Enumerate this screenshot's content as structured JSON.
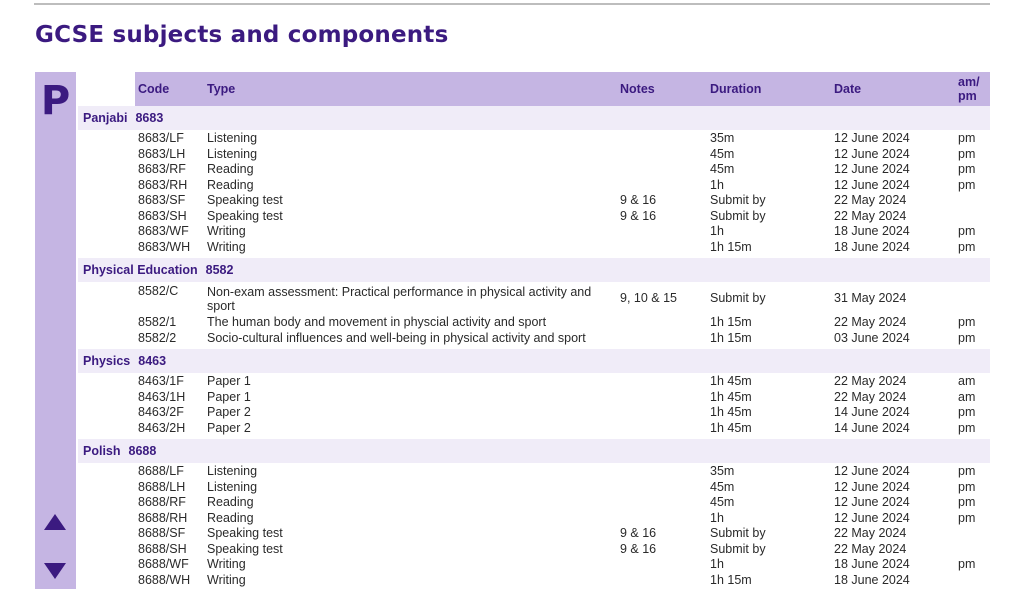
{
  "title": "GCSE subjects and components",
  "index_letter": "P",
  "headers": {
    "code": "Code",
    "type": "Type",
    "notes": "Notes",
    "duration": "Duration",
    "date": "Date",
    "ampm_1": "am/",
    "ampm_2": "pm"
  },
  "subjects": [
    {
      "name": "Panjabi",
      "code": "8683",
      "rows": [
        {
          "code": "8683/LF",
          "type": "Listening",
          "notes": "",
          "duration": "35m",
          "date": "12 June 2024",
          "ampm": "pm"
        },
        {
          "code": "8683/LH",
          "type": "Listening",
          "notes": "",
          "duration": "45m",
          "date": "12 June 2024",
          "ampm": "pm"
        },
        {
          "code": "8683/RF",
          "type": "Reading",
          "notes": "",
          "duration": "45m",
          "date": "12 June 2024",
          "ampm": "pm"
        },
        {
          "code": "8683/RH",
          "type": "Reading",
          "notes": "",
          "duration": "1h",
          "date": "12 June 2024",
          "ampm": "pm"
        },
        {
          "code": "8683/SF",
          "type": "Speaking test",
          "notes": "9 & 16",
          "duration": "Submit by",
          "date": "22 May 2024",
          "ampm": ""
        },
        {
          "code": "8683/SH",
          "type": "Speaking test",
          "notes": "9 & 16",
          "duration": "Submit by",
          "date": "22 May 2024",
          "ampm": ""
        },
        {
          "code": "8683/WF",
          "type": "Writing",
          "notes": "",
          "duration": "1h",
          "date": "18 June 2024",
          "ampm": "pm"
        },
        {
          "code": "8683/WH",
          "type": "Writing",
          "notes": "",
          "duration": "1h 15m",
          "date": "18 June 2024",
          "ampm": "pm"
        }
      ]
    },
    {
      "name": "Physical Education",
      "code": "8582",
      "rows": [
        {
          "code": "8582/C",
          "type": "Non-exam assessment: Practical performance in physical activity and sport",
          "notes": "9, 10 & 15",
          "duration": "Submit by",
          "date": "31 May 2024",
          "ampm": ""
        },
        {
          "code": "8582/1",
          "type": "The human body and movement in physcial activity and sport",
          "notes": "",
          "duration": "1h 15m",
          "date": "22 May 2024",
          "ampm": "pm"
        },
        {
          "code": "8582/2",
          "type": "Socio-cultural influences and well-being in physical activity and sport",
          "notes": "",
          "duration": "1h 15m",
          "date": "03 June 2024",
          "ampm": "pm"
        }
      ]
    },
    {
      "name": "Physics",
      "code": "8463",
      "rows": [
        {
          "code": "8463/1F",
          "type": "Paper 1",
          "notes": "",
          "duration": "1h 45m",
          "date": "22 May 2024",
          "ampm": "am"
        },
        {
          "code": "8463/1H",
          "type": "Paper 1",
          "notes": "",
          "duration": "1h 45m",
          "date": "22 May 2024",
          "ampm": "am"
        },
        {
          "code": "8463/2F",
          "type": "Paper 2",
          "notes": "",
          "duration": "1h 45m",
          "date": "14 June 2024",
          "ampm": "pm"
        },
        {
          "code": "8463/2H",
          "type": "Paper 2",
          "notes": "",
          "duration": "1h 45m",
          "date": "14 June 2024",
          "ampm": "pm"
        }
      ]
    },
    {
      "name": "Polish",
      "code": "8688",
      "rows": [
        {
          "code": "8688/LF",
          "type": "Listening",
          "notes": "",
          "duration": "35m",
          "date": "12 June 2024",
          "ampm": "pm"
        },
        {
          "code": "8688/LH",
          "type": "Listening",
          "notes": "",
          "duration": "45m",
          "date": "12 June 2024",
          "ampm": "pm"
        },
        {
          "code": "8688/RF",
          "type": "Reading",
          "notes": "",
          "duration": "45m",
          "date": "12 June 2024",
          "ampm": "pm"
        },
        {
          "code": "8688/RH",
          "type": "Reading",
          "notes": "",
          "duration": "1h",
          "date": "12 June 2024",
          "ampm": "pm"
        },
        {
          "code": "8688/SF",
          "type": "Speaking test",
          "notes": "9 & 16",
          "duration": "Submit by",
          "date": "22 May 2024",
          "ampm": ""
        },
        {
          "code": "8688/SH",
          "type": "Speaking test",
          "notes": "9 & 16",
          "duration": "Submit by",
          "date": "22 May 2024",
          "ampm": ""
        },
        {
          "code": "8688/WF",
          "type": "Writing",
          "notes": "",
          "duration": "1h",
          "date": "18 June 2024",
          "ampm": "pm"
        },
        {
          "code": "8688/WH",
          "type": "Writing",
          "notes": "",
          "duration": "1h 15m",
          "date": "18 June 2024",
          "ampm": ""
        }
      ]
    }
  ]
}
